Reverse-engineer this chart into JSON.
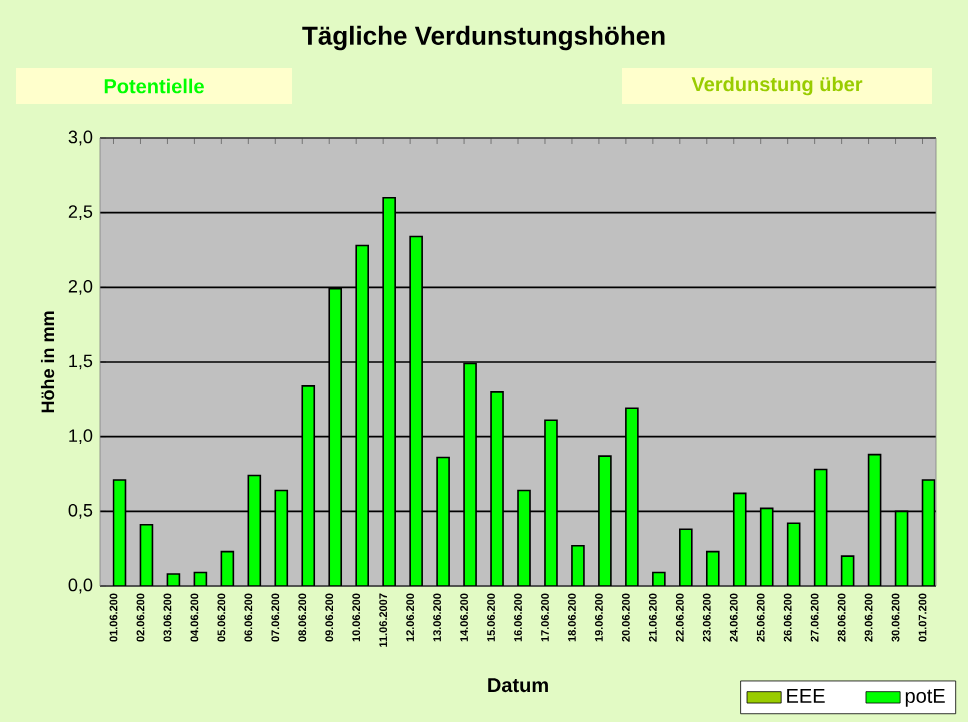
{
  "chart_data": {
    "type": "bar",
    "title": "Tägliche Verdunstungshöhen",
    "annotations": [
      "Potentielle",
      "Verdunstung über"
    ],
    "xlabel": "Datum",
    "ylabel": "Höhe in mm",
    "categories": [
      "01.06.200",
      "02.06.200",
      "03.06.200",
      "04.06.200",
      "05.06.200",
      "06.06.200",
      "07.06.200",
      "08.06.200",
      "09.06.200",
      "10.06.200",
      "11.06.2007",
      "12.06.200",
      "13.06.200",
      "14.06.200",
      "15.06.200",
      "16.06.200",
      "17.06.200",
      "18.06.200",
      "19.06.200",
      "20.06.200",
      "21.06.200",
      "22.06.200",
      "23.06.200",
      "24.06.200",
      "25.06.200",
      "26.06.200",
      "27.06.200",
      "28.06.200",
      "29.06.200",
      "30.06.200",
      "01.07.200"
    ],
    "series": [
      {
        "name": "EEE",
        "color": "#99cc00",
        "values": [
          null,
          null,
          null,
          null,
          null,
          null,
          null,
          null,
          null,
          null,
          null,
          null,
          null,
          null,
          null,
          null,
          null,
          null,
          null,
          null,
          null,
          null,
          null,
          null,
          null,
          null,
          null,
          null,
          null,
          null,
          null
        ]
      },
      {
        "name": "potE",
        "color": "#00ff00",
        "values": [
          0.71,
          0.41,
          0.08,
          0.09,
          0.23,
          0.74,
          0.64,
          1.34,
          1.99,
          2.28,
          2.6,
          2.34,
          0.86,
          1.49,
          1.3,
          0.64,
          1.11,
          0.27,
          0.87,
          1.19,
          0.09,
          0.38,
          0.23,
          0.62,
          0.52,
          0.42,
          0.78,
          0.2,
          0.88,
          0.5,
          0.71
        ]
      }
    ],
    "ylim": [
      0,
      3
    ],
    "yticks": [
      {
        "value": 0,
        "label": "0,0"
      },
      {
        "value": 0.5,
        "label": "0,5"
      },
      {
        "value": 1,
        "label": "1,0"
      },
      {
        "value": 1.5,
        "label": "1,5"
      },
      {
        "value": 2,
        "label": "2,0"
      },
      {
        "value": 2.5,
        "label": "2,5"
      },
      {
        "value": 3,
        "label": "3,0"
      }
    ],
    "grid": "y",
    "legend": "bottom right"
  }
}
